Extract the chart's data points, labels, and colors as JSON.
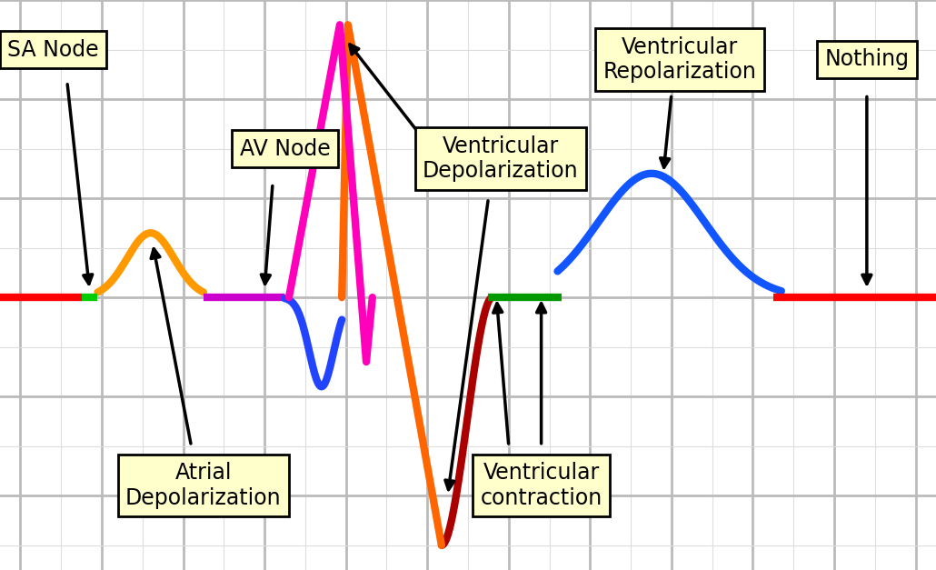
{
  "background_color": "#ffffff",
  "grid_major_color": "#bbbbbb",
  "grid_minor_color": "#dddddd",
  "linewidth": 6,
  "ylim": [
    -5.5,
    6.0
  ],
  "xlim": [
    -10.5,
    12.5
  ],
  "segments": {
    "baseline_left_color": "#ff0000",
    "sa_green_color": "#00cc00",
    "p_wave_color": "#ff9900",
    "pr_purple_color": "#cc00cc",
    "qrs_blue_color": "#2244ff",
    "qrs_pink_color": "#ff00bb",
    "qrs_orange_color": "#ff6600",
    "st_green_color": "#009900",
    "t_wave_color": "#1155ff",
    "baseline_right_color": "#ff0000",
    "s_darkred_color": "#aa0000"
  },
  "bbox_facecolor": "#ffffcc",
  "bbox_edgecolor": "#000000",
  "fontsize": 17,
  "arrow_lw": 2.5,
  "arrow_mutation_scale": 18
}
